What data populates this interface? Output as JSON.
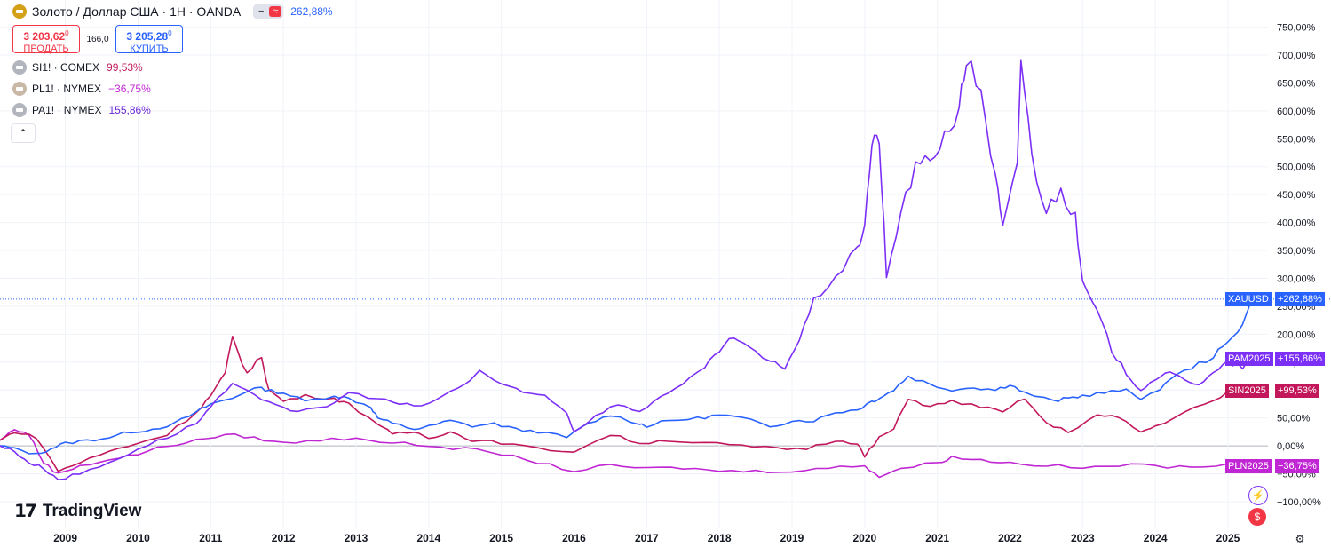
{
  "header": {
    "main_title": "Золото / Доллар США · 1H · OANDA",
    "main_change": "262,88%",
    "sell": {
      "price": "3 203,62",
      "sup": "0",
      "label": "ПРОДАТЬ"
    },
    "spread": "166,0",
    "buy": {
      "price": "3 205,28",
      "sup": "0",
      "label": "КУПИТЬ"
    },
    "compare": [
      {
        "symbol": "SI1! · COMEX",
        "change": "99,53%",
        "color": "#c2185b"
      },
      {
        "symbol": "PL1! · NYMEX",
        "change": "−36,75%",
        "color": "#c026d3"
      },
      {
        "symbol": "PA1! · NYMEX",
        "change": "155,86%",
        "color": "#6d28d9"
      }
    ]
  },
  "brand": {
    "name": "TradingView"
  },
  "colors": {
    "gold": "#2962ff",
    "silver": "#c2185b",
    "platinum": "#c026d3",
    "palladium": "#7b2ff7"
  },
  "chart_data": {
    "type": "line",
    "title": "Золото / Доллар США · 1H · OANDA",
    "x_ticks": [
      "2009",
      "2010",
      "2011",
      "2012",
      "2013",
      "2014",
      "2015",
      "2016",
      "2017",
      "2018",
      "2019",
      "2020",
      "2021",
      "2022",
      "2023",
      "2024",
      "2025"
    ],
    "xlim": [
      2008.1,
      2025.55
    ],
    "y_ticks": [
      "750,00%",
      "700,00%",
      "650,00%",
      "600,00%",
      "550,00%",
      "500,00%",
      "450,00%",
      "400,00%",
      "350,00%",
      "300,00%",
      "250,00%",
      "200,00%",
      "150,00%",
      "100,00%",
      "50,00%",
      "0,00%",
      "−50,00%",
      "−100,00%"
    ],
    "y_tick_values": [
      750,
      700,
      650,
      600,
      550,
      500,
      450,
      400,
      350,
      300,
      250,
      200,
      150,
      100,
      50,
      0,
      -50,
      -100
    ],
    "ylim": [
      -108,
      770
    ],
    "ylabel": "",
    "xlabel": "",
    "series": [
      {
        "name": "XAUUSD",
        "label": "XAUUSD",
        "last": "+262,88%",
        "color": "#2962ff",
        "x": [
          2008.1,
          2008.3,
          2008.6,
          2008.8,
          2009.0,
          2009.3,
          2009.6,
          2009.9,
          2010.2,
          2010.5,
          2010.8,
          2011.0,
          2011.3,
          2011.6,
          2011.75,
          2012.0,
          2012.3,
          2012.7,
          2012.9,
          2013.2,
          2013.3,
          2013.5,
          2013.8,
          2014.0,
          2014.3,
          2014.6,
          2014.9,
          2015.2,
          2015.5,
          2015.9,
          2016.2,
          2016.5,
          2016.9,
          2017.0,
          2017.3,
          2017.7,
          2018.0,
          2018.3,
          2018.7,
          2019.0,
          2019.3,
          2019.6,
          2019.9,
          2020.1,
          2020.2,
          2020.4,
          2020.6,
          2020.9,
          2021.2,
          2021.5,
          2021.8,
          2022.0,
          2022.2,
          2022.6,
          2022.8,
          2023.0,
          2023.3,
          2023.6,
          2023.8,
          2024.0,
          2024.2,
          2024.5,
          2024.8,
          2025.0,
          2025.2,
          2025.35
        ],
        "y": [
          0,
          -5,
          -15,
          -5,
          5,
          10,
          15,
          25,
          30,
          40,
          60,
          75,
          85,
          105,
          100,
          95,
          80,
          90,
          85,
          70,
          50,
          40,
          30,
          35,
          45,
          35,
          40,
          30,
          25,
          15,
          40,
          55,
          40,
          35,
          45,
          50,
          55,
          50,
          35,
          45,
          45,
          60,
          65,
          80,
          85,
          100,
          125,
          110,
          100,
          105,
          100,
          110,
          95,
          80,
          85,
          90,
          95,
          100,
          85,
          95,
          120,
          140,
          160,
          185,
          220,
          262.88
        ]
      },
      {
        "name": "SIN2025",
        "label": "SIN2025",
        "last": "+99,53%",
        "color": "#c2185b",
        "x": [
          2008.1,
          2008.3,
          2008.6,
          2008.9,
          2009.2,
          2009.6,
          2010.0,
          2010.4,
          2010.8,
          2011.0,
          2011.2,
          2011.3,
          2011.5,
          2011.7,
          2011.8,
          2012.0,
          2012.3,
          2012.7,
          2012.9,
          2013.3,
          2013.5,
          2013.8,
          2014.0,
          2014.3,
          2014.6,
          2015.0,
          2015.5,
          2016.0,
          2016.5,
          2016.9,
          2017.3,
          2017.8,
          2018.3,
          2018.8,
          2019.2,
          2019.6,
          2019.9,
          2020.0,
          2020.2,
          2020.4,
          2020.6,
          2020.9,
          2021.2,
          2021.6,
          2021.9,
          2022.2,
          2022.5,
          2022.8,
          2023.2,
          2023.5,
          2023.8,
          2024.0,
          2024.4,
          2024.8,
          2025.1,
          2025.35
        ],
        "y": [
          10,
          25,
          15,
          -45,
          -30,
          -10,
          5,
          20,
          60,
          90,
          130,
          195,
          130,
          160,
          100,
          80,
          90,
          85,
          75,
          40,
          20,
          25,
          15,
          25,
          10,
          5,
          -5,
          -10,
          20,
          5,
          10,
          5,
          0,
          -5,
          -5,
          10,
          5,
          -20,
          15,
          30,
          85,
          70,
          80,
          70,
          60,
          85,
          40,
          25,
          55,
          50,
          25,
          35,
          60,
          80,
          105,
          99.53
        ]
      },
      {
        "name": "PLN2025",
        "label": "PLN2025",
        "last": "−36,75%",
        "color": "#c026d3",
        "x": [
          2008.1,
          2008.3,
          2008.5,
          2008.7,
          2008.9,
          2009.2,
          2009.6,
          2010.0,
          2010.4,
          2010.8,
          2011.2,
          2011.6,
          2012.0,
          2012.5,
          2013.0,
          2013.5,
          2014.0,
          2014.5,
          2015.0,
          2015.5,
          2016.0,
          2016.5,
          2017.0,
          2017.5,
          2018.0,
          2018.5,
          2019.0,
          2019.5,
          2020.0,
          2020.2,
          2020.5,
          2021.0,
          2021.2,
          2021.6,
          2022.0,
          2022.5,
          2023.0,
          2023.5,
          2024.0,
          2024.5,
          2025.0,
          2025.35
        ],
        "y": [
          10,
          30,
          20,
          -30,
          -50,
          -35,
          -25,
          -15,
          0,
          10,
          20,
          15,
          5,
          10,
          15,
          5,
          0,
          -5,
          -15,
          -30,
          -45,
          -35,
          -40,
          -40,
          -45,
          -45,
          -45,
          -40,
          -35,
          -55,
          -40,
          -30,
          -20,
          -25,
          -30,
          -35,
          -40,
          -35,
          -35,
          -40,
          -30,
          -36.75
        ]
      },
      {
        "name": "PAM2025",
        "label": "PAM2025",
        "last": "+155,86%",
        "color": "#7b2ff7",
        "x": [
          2008.1,
          2008.3,
          2008.5,
          2008.7,
          2008.9,
          2009.2,
          2009.6,
          2010.0,
          2010.4,
          2010.8,
          2011.0,
          2011.3,
          2011.6,
          2011.9,
          2012.2,
          2012.6,
          2012.9,
          2013.3,
          2013.6,
          2013.9,
          2014.2,
          2014.5,
          2014.7,
          2015.0,
          2015.3,
          2015.6,
          2015.9,
          2016.0,
          2016.3,
          2016.6,
          2016.9,
          2017.2,
          2017.5,
          2017.8,
          2018.0,
          2018.2,
          2018.4,
          2018.7,
          2018.9,
          2019.1,
          2019.3,
          2019.6,
          2019.9,
          2020.0,
          2020.1,
          2020.2,
          2020.3,
          2020.5,
          2020.7,
          2020.9,
          2021.1,
          2021.3,
          2021.4,
          2021.6,
          2021.8,
          2021.9,
          2022.1,
          2022.15,
          2022.3,
          2022.5,
          2022.7,
          2022.9,
          2023.0,
          2023.2,
          2023.4,
          2023.6,
          2023.8,
          2024.0,
          2024.2,
          2024.4,
          2024.6,
          2024.8,
          2025.0,
          2025.2,
          2025.35
        ],
        "y": [
          0,
          -10,
          -30,
          -40,
          -60,
          -50,
          -30,
          -5,
          15,
          40,
          70,
          110,
          90,
          75,
          60,
          70,
          95,
          85,
          75,
          70,
          90,
          110,
          135,
          110,
          95,
          90,
          60,
          25,
          55,
          75,
          60,
          90,
          110,
          140,
          170,
          195,
          175,
          150,
          140,
          190,
          260,
          305,
          350,
          400,
          540,
          550,
          300,
          420,
          500,
          510,
          560,
          600,
          690,
          640,
          480,
          390,
          500,
          695,
          520,
          420,
          460,
          410,
          290,
          240,
          170,
          130,
          100,
          120,
          130,
          120,
          110,
          130,
          150,
          140,
          155.86
        ]
      }
    ],
    "current_price_line_pct": 262.88
  }
}
